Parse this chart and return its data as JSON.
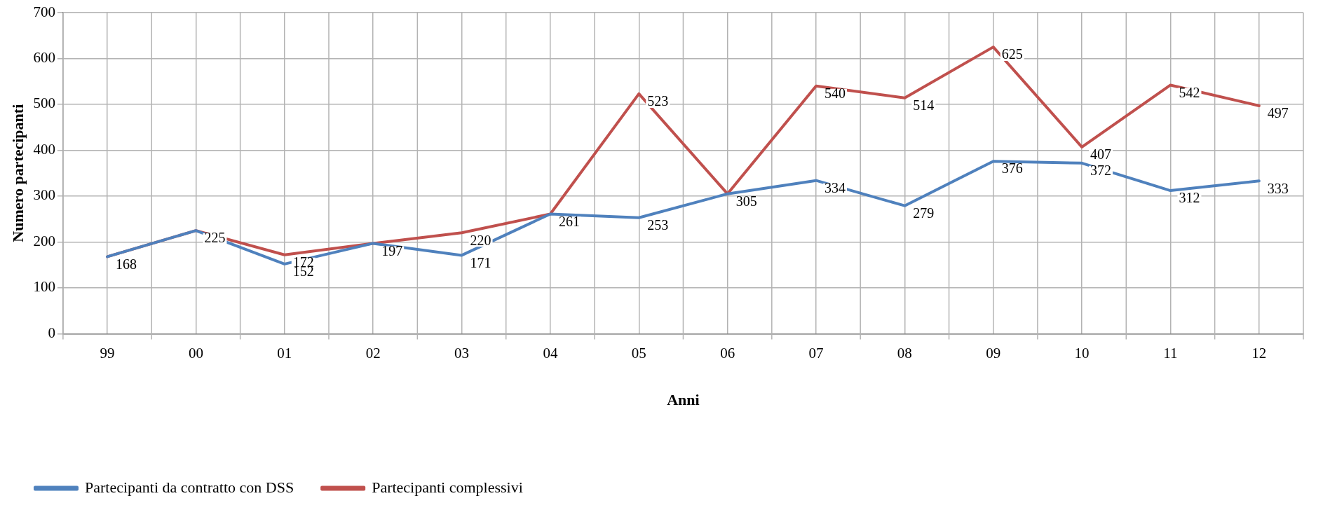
{
  "chart_data": {
    "type": "line",
    "xlabel": "Anni",
    "ylabel": "Numero partecipanti",
    "categories": [
      "99",
      "00",
      "01",
      "02",
      "03",
      "04",
      "05",
      "06",
      "07",
      "08",
      "09",
      "10",
      "11",
      "12"
    ],
    "series": [
      {
        "name": "Partecipanti da contratto con DSS",
        "color": "#4f81bd",
        "values": [
          168,
          225,
          152,
          197,
          171,
          261,
          253,
          305,
          334,
          279,
          376,
          372,
          312,
          333
        ],
        "value_labels": [
          "168",
          "225",
          "152",
          "197",
          "171",
          "261",
          "253",
          "305",
          "334",
          "279",
          "376",
          "372",
          "312",
          "333"
        ]
      },
      {
        "name": "Partecipanti complessivi",
        "color": "#c0504d",
        "values": [
          168,
          225,
          172,
          197,
          220,
          261,
          523,
          305,
          540,
          514,
          625,
          407,
          542,
          497
        ],
        "value_labels": [
          null,
          null,
          "172",
          null,
          "220",
          null,
          "523",
          null,
          "540",
          "514",
          "625",
          "407",
          "542",
          "497"
        ]
      }
    ],
    "ylim": [
      0,
      700
    ],
    "yticks": [
      0,
      100,
      200,
      300,
      400,
      500,
      600,
      700
    ],
    "grid": true,
    "legend": "bottom",
    "marker": "none",
    "line_style": "solid"
  }
}
